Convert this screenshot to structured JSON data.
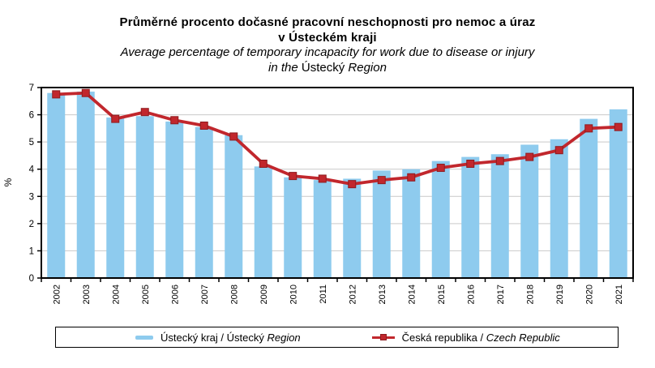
{
  "title": {
    "line1": "Průměrné procento dočasné pracovní neschopnosti pro nemoc a úraz",
    "line2": "v Ústeckém kraji"
  },
  "subtitle": {
    "line1": "Average percentage of temporary incapacity for work due to disease or injury",
    "line2_pre": "in the ",
    "line2_name": "Ústecký",
    "line2_post": " Region"
  },
  "chart_data": {
    "type": "bar",
    "title": "Průměrné procento dočasné pracovní neschopnosti pro nemoc a úraz v Ústeckém kraji",
    "subtitle": "Average percentage of temporary incapacity for work due to disease or injury in the Ústecký Region",
    "categories": [
      "2002",
      "2003",
      "2004",
      "2005",
      "2006",
      "2007",
      "2008",
      "2009",
      "2010",
      "2011",
      "2012",
      "2013",
      "2014",
      "2015",
      "2016",
      "2017",
      "2018",
      "2019",
      "2020",
      "2021"
    ],
    "series": [
      {
        "name": "Ústecký kraj / Ústecký Region",
        "type": "bar",
        "color": "#8ECBEE",
        "values": [
          6.8,
          6.85,
          5.9,
          5.95,
          5.75,
          5.55,
          5.25,
          4.1,
          3.7,
          3.6,
          3.65,
          3.95,
          4.0,
          4.3,
          4.45,
          4.55,
          4.9,
          5.1,
          5.85,
          6.2
        ]
      },
      {
        "name": "Česká republika / Czech Republic",
        "type": "line",
        "color": "#C1272D",
        "values": [
          6.75,
          6.8,
          5.85,
          6.1,
          5.8,
          5.6,
          5.2,
          4.2,
          3.75,
          3.65,
          3.45,
          3.6,
          3.7,
          4.05,
          4.2,
          4.3,
          4.45,
          4.7,
          5.5,
          5.55
        ]
      }
    ],
    "xlabel": "",
    "ylabel": "%",
    "ylim": [
      0,
      7
    ],
    "yticks": [
      "0",
      "1",
      "2",
      "3",
      "4",
      "5",
      "6",
      "7"
    ],
    "grid": "horizontal",
    "legend_position": "bottom"
  },
  "legend": {
    "items": [
      {
        "label_main": "Ústecký kraj / Ústecký ",
        "label_italic": "Region",
        "swatch": "bar-swatch",
        "color": "#8ECBEE"
      },
      {
        "label_main": "Česká republika / ",
        "label_italic": "Czech Republic",
        "swatch": "line-marker-swatch",
        "color": "#C1272D"
      }
    ]
  },
  "colors": {
    "bar": "#8ECBEE",
    "line": "#C1272D",
    "marker_border": "#8E1B1F",
    "grid": "#C9C9C9",
    "axis": "#000000",
    "text": "#000000"
  }
}
